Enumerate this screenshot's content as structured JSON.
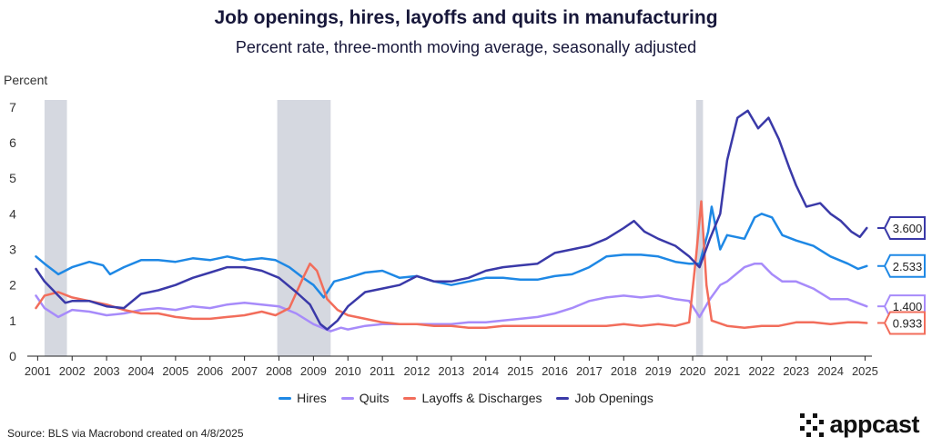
{
  "chart_data": {
    "type": "line",
    "title": "Job openings, hires, layoffs and quits in manufacturing",
    "subtitle": "Percent rate, three-month moving average, seasonally adjusted",
    "ylabel": "Percent",
    "xlabel": "",
    "xlim": [
      2000.7,
      2025.2
    ],
    "ylim": [
      0,
      7.2
    ],
    "yticks": [
      0,
      1,
      2,
      3,
      4,
      5,
      6,
      7
    ],
    "xticks": [
      "2001",
      "2002",
      "2003",
      "2004",
      "2005",
      "2006",
      "2007",
      "2008",
      "2009",
      "2010",
      "2011",
      "2012",
      "2013",
      "2014",
      "2015",
      "2016",
      "2017",
      "2018",
      "2019",
      "2020",
      "2021",
      "2022",
      "2023",
      "2024",
      "2025"
    ],
    "grid": false,
    "legend": "bottom",
    "recessions": [
      [
        2001.2,
        2001.85
      ],
      [
        2007.95,
        2009.5
      ],
      [
        2020.1,
        2020.3
      ]
    ],
    "series": [
      {
        "name": "Hires",
        "color": "#1e88e5",
        "end_label": "2.533",
        "points": [
          [
            2000.95,
            2.8
          ],
          [
            2001.2,
            2.6
          ],
          [
            2001.6,
            2.3
          ],
          [
            2002.0,
            2.5
          ],
          [
            2002.5,
            2.65
          ],
          [
            2002.9,
            2.55
          ],
          [
            2003.1,
            2.3
          ],
          [
            2003.5,
            2.5
          ],
          [
            2004.0,
            2.7
          ],
          [
            2004.5,
            2.7
          ],
          [
            2005.0,
            2.65
          ],
          [
            2005.5,
            2.75
          ],
          [
            2006.0,
            2.7
          ],
          [
            2006.5,
            2.8
          ],
          [
            2007.0,
            2.7
          ],
          [
            2007.5,
            2.75
          ],
          [
            2007.9,
            2.7
          ],
          [
            2008.3,
            2.5
          ],
          [
            2008.7,
            2.2
          ],
          [
            2009.0,
            2.0
          ],
          [
            2009.3,
            1.65
          ],
          [
            2009.6,
            2.1
          ],
          [
            2010.0,
            2.2
          ],
          [
            2010.5,
            2.35
          ],
          [
            2011.0,
            2.4
          ],
          [
            2011.5,
            2.2
          ],
          [
            2012.0,
            2.25
          ],
          [
            2012.5,
            2.1
          ],
          [
            2013.0,
            2.0
          ],
          [
            2013.5,
            2.1
          ],
          [
            2014.0,
            2.2
          ],
          [
            2014.5,
            2.2
          ],
          [
            2015.0,
            2.15
          ],
          [
            2015.5,
            2.15
          ],
          [
            2016.0,
            2.25
          ],
          [
            2016.5,
            2.3
          ],
          [
            2017.0,
            2.5
          ],
          [
            2017.5,
            2.8
          ],
          [
            2018.0,
            2.85
          ],
          [
            2018.5,
            2.85
          ],
          [
            2019.0,
            2.8
          ],
          [
            2019.5,
            2.65
          ],
          [
            2019.9,
            2.6
          ],
          [
            2020.2,
            2.6
          ],
          [
            2020.45,
            3.5
          ],
          [
            2020.55,
            4.2
          ],
          [
            2020.8,
            3.0
          ],
          [
            2021.0,
            3.4
          ],
          [
            2021.5,
            3.3
          ],
          [
            2021.8,
            3.9
          ],
          [
            2022.0,
            4.0
          ],
          [
            2022.3,
            3.9
          ],
          [
            2022.6,
            3.4
          ],
          [
            2023.0,
            3.25
          ],
          [
            2023.5,
            3.1
          ],
          [
            2024.0,
            2.8
          ],
          [
            2024.5,
            2.6
          ],
          [
            2024.8,
            2.45
          ],
          [
            2025.05,
            2.533
          ]
        ]
      },
      {
        "name": "Quits",
        "color": "#a78bfa",
        "end_label": "1.400",
        "points": [
          [
            2000.95,
            1.7
          ],
          [
            2001.2,
            1.35
          ],
          [
            2001.6,
            1.1
          ],
          [
            2002.0,
            1.3
          ],
          [
            2002.5,
            1.25
          ],
          [
            2003.0,
            1.15
          ],
          [
            2003.5,
            1.2
          ],
          [
            2004.0,
            1.3
          ],
          [
            2004.5,
            1.35
          ],
          [
            2005.0,
            1.3
          ],
          [
            2005.5,
            1.4
          ],
          [
            2006.0,
            1.35
          ],
          [
            2006.5,
            1.45
          ],
          [
            2007.0,
            1.5
          ],
          [
            2007.5,
            1.45
          ],
          [
            2008.0,
            1.4
          ],
          [
            2008.5,
            1.2
          ],
          [
            2009.0,
            0.9
          ],
          [
            2009.5,
            0.7
          ],
          [
            2009.8,
            0.8
          ],
          [
            2010.0,
            0.75
          ],
          [
            2010.5,
            0.85
          ],
          [
            2011.0,
            0.9
          ],
          [
            2011.5,
            0.9
          ],
          [
            2012.0,
            0.9
          ],
          [
            2012.5,
            0.9
          ],
          [
            2013.0,
            0.9
          ],
          [
            2013.5,
            0.95
          ],
          [
            2014.0,
            0.95
          ],
          [
            2014.5,
            1.0
          ],
          [
            2015.0,
            1.05
          ],
          [
            2015.5,
            1.1
          ],
          [
            2016.0,
            1.2
          ],
          [
            2016.5,
            1.35
          ],
          [
            2017.0,
            1.55
          ],
          [
            2017.5,
            1.65
          ],
          [
            2018.0,
            1.7
          ],
          [
            2018.5,
            1.65
          ],
          [
            2019.0,
            1.7
          ],
          [
            2019.5,
            1.6
          ],
          [
            2019.9,
            1.55
          ],
          [
            2020.2,
            1.1
          ],
          [
            2020.5,
            1.6
          ],
          [
            2020.8,
            2.0
          ],
          [
            2021.0,
            2.1
          ],
          [
            2021.5,
            2.5
          ],
          [
            2021.8,
            2.6
          ],
          [
            2022.0,
            2.6
          ],
          [
            2022.3,
            2.3
          ],
          [
            2022.6,
            2.1
          ],
          [
            2023.0,
            2.1
          ],
          [
            2023.5,
            1.9
          ],
          [
            2024.0,
            1.6
          ],
          [
            2024.5,
            1.6
          ],
          [
            2025.05,
            1.4
          ]
        ]
      },
      {
        "name": "Layoffs & Discharges",
        "color": "#f26d5b",
        "end_label": "0.933",
        "points": [
          [
            2000.95,
            1.35
          ],
          [
            2001.2,
            1.7
          ],
          [
            2001.6,
            1.8
          ],
          [
            2002.0,
            1.65
          ],
          [
            2002.5,
            1.55
          ],
          [
            2003.0,
            1.45
          ],
          [
            2003.5,
            1.3
          ],
          [
            2004.0,
            1.2
          ],
          [
            2004.5,
            1.2
          ],
          [
            2005.0,
            1.1
          ],
          [
            2005.5,
            1.05
          ],
          [
            2006.0,
            1.05
          ],
          [
            2006.5,
            1.1
          ],
          [
            2007.0,
            1.15
          ],
          [
            2007.5,
            1.25
          ],
          [
            2007.9,
            1.15
          ],
          [
            2008.3,
            1.35
          ],
          [
            2008.7,
            2.2
          ],
          [
            2008.9,
            2.6
          ],
          [
            2009.1,
            2.4
          ],
          [
            2009.4,
            1.6
          ],
          [
            2009.7,
            1.3
          ],
          [
            2010.0,
            1.15
          ],
          [
            2010.5,
            1.05
          ],
          [
            2011.0,
            0.95
          ],
          [
            2011.5,
            0.9
          ],
          [
            2012.0,
            0.9
          ],
          [
            2012.5,
            0.85
          ],
          [
            2013.0,
            0.85
          ],
          [
            2013.5,
            0.8
          ],
          [
            2014.0,
            0.8
          ],
          [
            2014.5,
            0.85
          ],
          [
            2015.0,
            0.85
          ],
          [
            2015.5,
            0.85
          ],
          [
            2016.0,
            0.85
          ],
          [
            2016.5,
            0.85
          ],
          [
            2017.0,
            0.85
          ],
          [
            2017.5,
            0.85
          ],
          [
            2018.0,
            0.9
          ],
          [
            2018.5,
            0.85
          ],
          [
            2019.0,
            0.9
          ],
          [
            2019.5,
            0.85
          ],
          [
            2019.9,
            0.95
          ],
          [
            2020.1,
            2.8
          ],
          [
            2020.25,
            4.35
          ],
          [
            2020.4,
            2.0
          ],
          [
            2020.55,
            1.0
          ],
          [
            2021.0,
            0.85
          ],
          [
            2021.5,
            0.8
          ],
          [
            2022.0,
            0.85
          ],
          [
            2022.5,
            0.85
          ],
          [
            2023.0,
            0.95
          ],
          [
            2023.5,
            0.95
          ],
          [
            2024.0,
            0.9
          ],
          [
            2024.5,
            0.95
          ],
          [
            2024.8,
            0.95
          ],
          [
            2025.05,
            0.933
          ]
        ]
      },
      {
        "name": "Job Openings",
        "color": "#3a39a8",
        "end_label": "3.600",
        "points": [
          [
            2000.95,
            2.45
          ],
          [
            2001.2,
            2.1
          ],
          [
            2001.5,
            1.8
          ],
          [
            2001.8,
            1.5
          ],
          [
            2002.0,
            1.55
          ],
          [
            2002.5,
            1.55
          ],
          [
            2003.0,
            1.4
          ],
          [
            2003.5,
            1.35
          ],
          [
            2004.0,
            1.75
          ],
          [
            2004.5,
            1.85
          ],
          [
            2005.0,
            2.0
          ],
          [
            2005.5,
            2.2
          ],
          [
            2006.0,
            2.35
          ],
          [
            2006.5,
            2.5
          ],
          [
            2007.0,
            2.5
          ],
          [
            2007.5,
            2.4
          ],
          [
            2008.0,
            2.2
          ],
          [
            2008.5,
            1.8
          ],
          [
            2008.9,
            1.45
          ],
          [
            2009.2,
            0.9
          ],
          [
            2009.4,
            0.75
          ],
          [
            2009.7,
            1.0
          ],
          [
            2010.0,
            1.4
          ],
          [
            2010.5,
            1.8
          ],
          [
            2011.0,
            1.9
          ],
          [
            2011.5,
            2.0
          ],
          [
            2012.0,
            2.25
          ],
          [
            2012.5,
            2.1
          ],
          [
            2013.0,
            2.1
          ],
          [
            2013.5,
            2.2
          ],
          [
            2014.0,
            2.4
          ],
          [
            2014.5,
            2.5
          ],
          [
            2015.0,
            2.55
          ],
          [
            2015.5,
            2.6
          ],
          [
            2016.0,
            2.9
          ],
          [
            2016.5,
            3.0
          ],
          [
            2017.0,
            3.1
          ],
          [
            2017.5,
            3.3
          ],
          [
            2018.0,
            3.6
          ],
          [
            2018.3,
            3.8
          ],
          [
            2018.6,
            3.5
          ],
          [
            2019.0,
            3.3
          ],
          [
            2019.5,
            3.1
          ],
          [
            2019.9,
            2.8
          ],
          [
            2020.2,
            2.5
          ],
          [
            2020.5,
            3.3
          ],
          [
            2020.8,
            4.0
          ],
          [
            2021.0,
            5.5
          ],
          [
            2021.3,
            6.7
          ],
          [
            2021.6,
            6.9
          ],
          [
            2021.9,
            6.4
          ],
          [
            2022.2,
            6.7
          ],
          [
            2022.5,
            6.1
          ],
          [
            2022.8,
            5.3
          ],
          [
            2023.0,
            4.8
          ],
          [
            2023.3,
            4.2
          ],
          [
            2023.7,
            4.3
          ],
          [
            2024.0,
            4.0
          ],
          [
            2024.3,
            3.8
          ],
          [
            2024.6,
            3.5
          ],
          [
            2024.85,
            3.35
          ],
          [
            2025.05,
            3.6
          ]
        ]
      }
    ]
  },
  "source_text": "Source: BLS via Macrobond created on 4/8/2025",
  "logo_text": "appcast"
}
